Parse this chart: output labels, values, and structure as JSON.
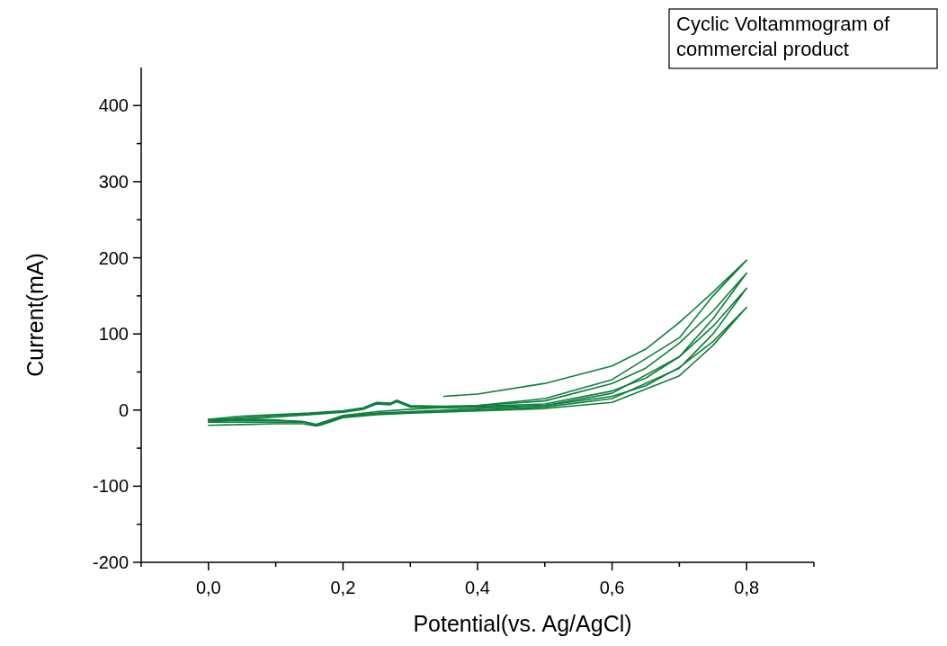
{
  "chart_data": {
    "type": "line",
    "xlabel": "Potential(vs. Ag/AgCl)",
    "ylabel": "Current(mA)",
    "annotations": [
      "Cyclic Voltammogram of commercial product"
    ],
    "xlim": [
      -0.1,
      0.9
    ],
    "ylim": [
      -200,
      450
    ],
    "xticks": [
      {
        "value": -0.1,
        "label": null
      },
      {
        "value": 0,
        "label": "0,0"
      },
      {
        "value": 0.1,
        "label": null
      },
      {
        "value": 0.2,
        "label": "0,2"
      },
      {
        "value": 0.3,
        "label": null
      },
      {
        "value": 0.4,
        "label": "0,4"
      },
      {
        "value": 0.5,
        "label": null
      },
      {
        "value": 0.6,
        "label": "0,6"
      },
      {
        "value": 0.7,
        "label": null
      },
      {
        "value": 0.8,
        "label": "0,8"
      },
      {
        "value": 0.9,
        "label": null
      }
    ],
    "yticks": [
      -200,
      {
        "value": -150,
        "label": null
      },
      -100,
      {
        "value": -50,
        "label": null
      },
      0,
      {
        "value": 50,
        "label": null
      },
      100,
      {
        "value": 150,
        "label": null
      },
      200,
      {
        "value": 250,
        "label": null
      },
      300,
      {
        "value": 350,
        "label": null
      },
      400
    ],
    "series": [
      {
        "color": "#0f7f3d",
        "x": [
          0.35,
          0.4,
          0.5,
          0.6,
          0.65,
          0.7,
          0.75,
          0.8,
          0.75,
          0.7,
          0.6,
          0.5,
          0.4,
          0.3,
          0.25,
          0.2,
          0.17,
          0.16,
          0.14,
          0.1,
          0.05,
          0
        ],
        "values": [
          18,
          21,
          35,
          58,
          80,
          115,
          155,
          197,
          150,
          95,
          40,
          15,
          6,
          1,
          -2,
          -7,
          -16,
          -19,
          -15,
          -13,
          -12,
          -12
        ]
      },
      {
        "color": "#0f7f3d",
        "x": [
          0,
          0.05,
          0.1,
          0.15,
          0.2,
          0.23,
          0.25,
          0.27,
          0.28,
          0.3,
          0.35,
          0.4,
          0.5,
          0.6,
          0.65,
          0.7,
          0.75,
          0.8,
          0.75,
          0.7,
          0.6,
          0.5,
          0.4,
          0.3,
          0.25,
          0.2,
          0.17,
          0.16,
          0.14,
          0.1,
          0.05,
          0
        ],
        "values": [
          -12,
          -8,
          -6,
          -4,
          -1,
          3,
          10,
          9,
          13,
          6,
          5,
          6,
          12,
          35,
          55,
          88,
          130,
          180,
          120,
          70,
          22,
          6,
          2,
          -2,
          -4,
          -8,
          -17,
          -19,
          -15,
          -14,
          -14,
          -14
        ]
      },
      {
        "color": "#0f7f3d",
        "x": [
          0,
          0.05,
          0.1,
          0.15,
          0.2,
          0.23,
          0.25,
          0.27,
          0.28,
          0.3,
          0.35,
          0.4,
          0.5,
          0.6,
          0.65,
          0.7,
          0.75,
          0.8,
          0.75,
          0.7,
          0.6,
          0.5,
          0.4,
          0.3,
          0.25,
          0.2,
          0.17,
          0.16,
          0.14,
          0.1,
          0.05,
          0
        ],
        "values": [
          -14,
          -10,
          -7,
          -5,
          -2,
          2,
          9,
          8,
          12,
          5,
          4,
          5,
          8,
          25,
          42,
          70,
          110,
          160,
          100,
          55,
          15,
          4,
          0,
          -3,
          -5,
          -9,
          -18,
          -20,
          -16,
          -16,
          -16,
          -16
        ]
      },
      {
        "color": "#0f7f3d",
        "x": [
          0,
          0.05,
          0.1,
          0.15,
          0.2,
          0.23,
          0.25,
          0.27,
          0.28,
          0.3,
          0.35,
          0.4,
          0.5,
          0.6,
          0.65,
          0.7,
          0.75,
          0.8,
          0.75,
          0.7,
          0.6,
          0.5,
          0.4,
          0.3,
          0.25,
          0.2,
          0.17,
          0.16,
          0.14,
          0.1,
          0.05,
          0
        ],
        "values": [
          -16,
          -12,
          -9,
          -6,
          -3,
          1,
          8,
          7,
          11,
          4,
          3,
          4,
          6,
          18,
          32,
          56,
          90,
          135,
          85,
          45,
          10,
          2,
          -1,
          -4,
          -6,
          -10,
          -19,
          -21,
          -18,
          -18,
          -19,
          -20
        ]
      }
    ]
  }
}
